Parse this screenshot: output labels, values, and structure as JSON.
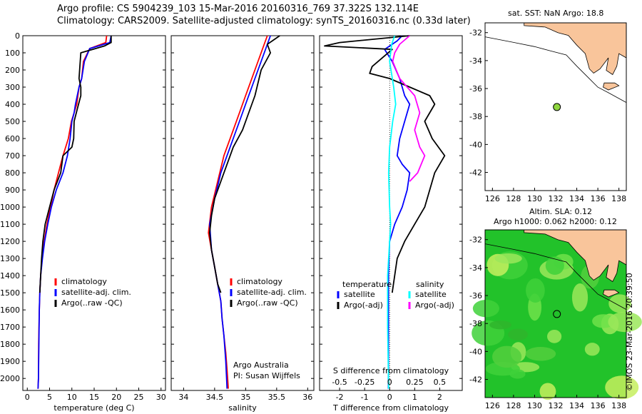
{
  "header": {
    "line1": "Argo profile: CS 5904239_103 15-Mar-2016 20160316_769 37.322S 132.114E",
    "line2": "Climatology: CARS2009. Satellite-adjusted climatology: synTS_20160316.nc (0.33d later)"
  },
  "map_top": {
    "title": "sat. SST: NaN Argo: 18.8"
  },
  "map_bottom": {
    "title1": "Altim. SLA: 0.12",
    "title2": "Argo h1000: 0.062 h2000: 0.12"
  },
  "credit": "©IMOS 23-Mar-2016 20:39:50",
  "colors": {
    "climatology": "#ff0000",
    "satellite": "#0000ff",
    "argo": "#000000",
    "sat_salinity": "#00ffff",
    "argo_salinity": "#ff00ff",
    "land": "#f9c59b",
    "sea_green": "#22c22a",
    "argo_marker": "#8fd63f"
  },
  "chart_data": [
    {
      "type": "line",
      "xlabel": "temperature (deg C)",
      "ylabel": "",
      "xlim": [
        -1,
        31
      ],
      "ylim": [
        2070,
        0
      ],
      "xticks": [
        0,
        5,
        10,
        15,
        20,
        25,
        30
      ],
      "yticks": [
        0,
        100,
        200,
        300,
        400,
        500,
        600,
        700,
        800,
        900,
        1000,
        1100,
        1200,
        1300,
        1400,
        1500,
        1600,
        1700,
        1800,
        1900,
        2000
      ],
      "grid": false,
      "legend_position": "lower-right",
      "legend": [
        "climatology",
        "satellite-adj. clim.",
        "Argo(..raw -QC)"
      ],
      "series": [
        {
          "name": "climatology",
          "color": "#ff0000",
          "x": [
            17.8,
            17.6,
            14.0,
            12.6,
            12.2,
            11.6,
            11.1,
            10.5,
            9.9,
            9.2,
            8.0,
            7.0,
            6.0,
            5.2,
            4.4,
            3.8,
            3.3,
            3.0,
            2.8,
            2.7,
            2.55,
            2.5,
            2.4
          ],
          "y": [
            0,
            40,
            75,
            150,
            250,
            300,
            400,
            450,
            500,
            600,
            700,
            800,
            900,
            1000,
            1100,
            1200,
            1300,
            1400,
            1500,
            1600,
            1800,
            2000,
            2060
          ]
        },
        {
          "name": "satellite-adj. clim.",
          "color": "#0000ff",
          "x": [
            18.8,
            18.5,
            14.0,
            12.8,
            12.2,
            11.6,
            10.8,
            10.5,
            10.0,
            9.6,
            9.0,
            8.0,
            6.5,
            5.4,
            4.6,
            3.9,
            3.4,
            3.0,
            2.8,
            2.7,
            2.6,
            2.5,
            2.4
          ],
          "y": [
            0,
            40,
            75,
            150,
            250,
            300,
            400,
            450,
            500,
            600,
            700,
            800,
            900,
            1000,
            1100,
            1200,
            1300,
            1400,
            1500,
            1600,
            1800,
            2000,
            2060
          ]
        },
        {
          "name": "Argo(..raw -QC)",
          "color": "#000000",
          "x": [
            18.8,
            18.8,
            17.3,
            12.0,
            11.6,
            12.0,
            12.0,
            11.5,
            10.5,
            10.4,
            10.0,
            8.0,
            7.5,
            6.0,
            5.0,
            4.0,
            3.5,
            3.2,
            3.0,
            2.8
          ],
          "y": [
            0,
            40,
            60,
            100,
            250,
            300,
            350,
            400,
            500,
            600,
            650,
            700,
            800,
            900,
            1000,
            1100,
            1200,
            1300,
            1400,
            1500
          ]
        }
      ]
    },
    {
      "type": "line",
      "xlabel": "salinity",
      "ylabel": "",
      "xlim": [
        33.8,
        36.1
      ],
      "ylim": [
        2070,
        0
      ],
      "xticks": [
        34,
        34.5,
        35,
        35.5,
        36
      ],
      "grid": false,
      "legend_position": "lower-right",
      "legend": [
        "climatology",
        "satellite-adj. clim.",
        "Argo(..raw -QC)"
      ],
      "annotations": [
        "Argo Australia",
        "PI: Susan Wijffels"
      ],
      "series": [
        {
          "name": "climatology",
          "color": "#ff0000",
          "x": [
            35.35,
            35.3,
            35.2,
            35.1,
            35.0,
            34.9,
            34.8,
            34.65,
            34.55,
            34.45,
            34.4,
            34.45,
            34.5,
            34.55,
            34.6,
            34.62,
            34.65,
            34.68,
            34.7,
            34.71,
            34.72
          ],
          "y": [
            0,
            50,
            150,
            250,
            350,
            450,
            550,
            700,
            850,
            1000,
            1150,
            1250,
            1350,
            1450,
            1550,
            1650,
            1750,
            1850,
            1950,
            2000,
            2060
          ]
        },
        {
          "name": "satellite-adj. clim.",
          "color": "#0000ff",
          "x": [
            35.4,
            35.35,
            35.25,
            35.1,
            35.0,
            34.9,
            34.75,
            34.6,
            34.5,
            34.42,
            34.45,
            34.5,
            34.55,
            34.6,
            34.62,
            34.65,
            34.68,
            34.7
          ],
          "y": [
            0,
            50,
            150,
            300,
            400,
            500,
            650,
            800,
            950,
            1100,
            1250,
            1350,
            1450,
            1550,
            1650,
            1750,
            1900,
            2060
          ]
        },
        {
          "name": "Argo(..raw -QC)",
          "color": "#000000",
          "x": [
            35.55,
            35.35,
            35.4,
            35.25,
            35.15,
            35.05,
            34.95,
            34.8,
            34.7,
            34.6,
            34.5,
            34.45,
            34.42,
            34.45,
            34.5,
            34.55,
            34.6
          ],
          "y": [
            0,
            50,
            100,
            200,
            350,
            450,
            550,
            650,
            750,
            850,
            950,
            1050,
            1150,
            1250,
            1350,
            1450,
            1500
          ]
        }
      ]
    },
    {
      "type": "line",
      "xlabel": "T difference from climatology",
      "secondary_xlabel": "S difference from climatology",
      "xlim": [
        -2.8,
        2.9
      ],
      "xticks": [
        -2,
        -1,
        0,
        1,
        2
      ],
      "secondary_xticks": [
        -0.5,
        -0.25,
        0,
        0.25,
        0.5
      ],
      "ylim": [
        2070,
        0
      ],
      "grid": false,
      "legend_position": "lower-center",
      "legend_groups": [
        "temperature",
        "salinity"
      ],
      "legend": [
        "satellite",
        "Argo(-adj)",
        "satellite",
        "Argo(-adj)"
      ],
      "series": [
        {
          "name": "temperature satellite",
          "color": "#0000ff",
          "x": [
            0.5,
            0.3,
            -0.2,
            0.1,
            0.4,
            0.6,
            0.8,
            0.6,
            0.4,
            0.3,
            0.5,
            0.8,
            0.7,
            0.5,
            0.2,
            0.0,
            -0.05,
            -0.05,
            -0.05
          ],
          "y": [
            0,
            30,
            80,
            150,
            250,
            350,
            400,
            500,
            600,
            700,
            750,
            800,
            900,
            1000,
            1100,
            1200,
            1400,
            1700,
            2060
          ]
        },
        {
          "name": "temperature Argo(-adj)",
          "color": "#000000",
          "x": [
            0.8,
            -2.0,
            -2.6,
            0.1,
            -0.7,
            -0.8,
            0.0,
            0.8,
            1.6,
            1.8,
            1.4,
            1.7,
            2.2,
            1.8,
            1.6,
            1.4,
            1.0,
            0.6,
            0.3,
            0.1
          ],
          "y": [
            0,
            40,
            60,
            80,
            180,
            220,
            250,
            300,
            350,
            400,
            500,
            600,
            700,
            800,
            900,
            1000,
            1100,
            1200,
            1300,
            1500
          ]
        },
        {
          "name": "salinity satellite",
          "color": "#00ffff",
          "x": [
            0.05,
            0.02,
            0.0,
            0.04,
            0.06,
            0.03,
            0.0,
            -0.01,
            0.0,
            0.01,
            0.0,
            -0.02,
            -0.02,
            -0.01
          ],
          "y": [
            0,
            50,
            150,
            300,
            400,
            500,
            650,
            800,
            1000,
            1100,
            1200,
            1400,
            1700,
            2060
          ]
        },
        {
          "name": "salinity Argo(-adj)",
          "color": "#ff00ff",
          "x": [
            0.2,
            0.1,
            0.05,
            0.03,
            0.1,
            0.25,
            0.3,
            0.25,
            0.3,
            0.35,
            0.28,
            0.2
          ],
          "y": [
            0,
            50,
            100,
            150,
            250,
            350,
            450,
            550,
            650,
            700,
            800,
            850
          ]
        }
      ]
    }
  ],
  "maps": {
    "top": {
      "lon_ticks": [
        126,
        128,
        130,
        132,
        134,
        136,
        138
      ],
      "lat_ticks": [
        -32,
        -34,
        -36,
        -38,
        -40,
        -42
      ],
      "argo_lon": 132.114,
      "argo_lat": -37.322
    },
    "bottom": {
      "lon_ticks": [
        126,
        128,
        130,
        132,
        134,
        136,
        138
      ],
      "lat_ticks": [
        -32,
        -34,
        -36,
        -38,
        -40,
        -42
      ],
      "argo_lon": 132.114,
      "argo_lat": -37.322
    }
  }
}
